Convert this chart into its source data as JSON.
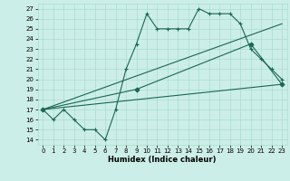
{
  "xlabel": "Humidex (Indice chaleur)",
  "bg_color": "#cceee8",
  "grid_color": "#aaddcc",
  "line_color": "#1a6655",
  "xlim": [
    -0.5,
    23.5
  ],
  "ylim": [
    13.5,
    27.5
  ],
  "yticks": [
    14,
    15,
    16,
    17,
    18,
    19,
    20,
    21,
    22,
    23,
    24,
    25,
    26,
    27
  ],
  "xticks": [
    0,
    1,
    2,
    3,
    4,
    5,
    6,
    7,
    8,
    9,
    10,
    11,
    12,
    13,
    14,
    15,
    16,
    17,
    18,
    19,
    20,
    21,
    22,
    23
  ],
  "series": [
    {
      "x": [
        0,
        1,
        2,
        3,
        4,
        5,
        6,
        7,
        8,
        9,
        10,
        11,
        12,
        13,
        14,
        15,
        16,
        17,
        18,
        19,
        20,
        21,
        22,
        23
      ],
      "y": [
        17,
        16,
        17,
        16,
        15,
        15,
        14,
        17,
        21,
        23.5,
        26.5,
        25,
        25,
        25,
        25,
        27,
        26.5,
        26.5,
        26.5,
        25.5,
        23,
        22,
        21,
        20
      ],
      "marker": "+"
    },
    {
      "x": [
        0,
        23
      ],
      "y": [
        17,
        19.5
      ],
      "marker": null
    },
    {
      "x": [
        0,
        23
      ],
      "y": [
        17,
        25.5
      ],
      "marker": null
    },
    {
      "x": [
        0,
        9,
        20,
        23
      ],
      "y": [
        17,
        19,
        23.5,
        19.5
      ],
      "marker": "D"
    }
  ]
}
